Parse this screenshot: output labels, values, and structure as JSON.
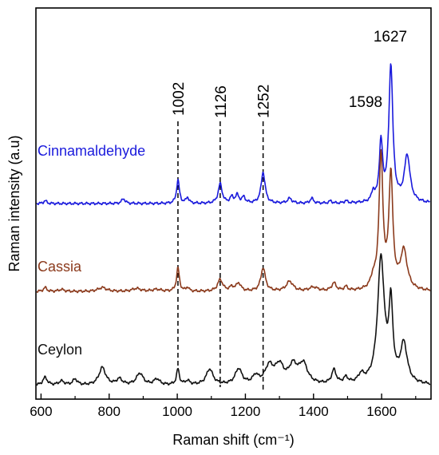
{
  "chart_data": {
    "type": "line",
    "xlabel": "Raman shift (cm⁻¹)",
    "ylabel": "Raman intensity (a.u)",
    "xlim": [
      585,
      1745
    ],
    "x_ticks": [
      600,
      800,
      1000,
      1200,
      1400,
      1600
    ],
    "grid": false,
    "legend": "none",
    "reference_lines": [
      {
        "x": 1002,
        "label": "1002"
      },
      {
        "x": 1126,
        "label": "1126"
      },
      {
        "x": 1252,
        "label": "1252"
      }
    ],
    "peak_labels": [
      {
        "x": 1598,
        "label": "1598"
      },
      {
        "x": 1627,
        "label": "1627"
      }
    ],
    "series": [
      {
        "name": "Cinnamaldehyde",
        "color": "#1a1adc",
        "baseline": 0.55,
        "peaks": [
          [
            612,
            0.015,
            5
          ],
          [
            842,
            0.025,
            6
          ],
          [
            1002,
            0.12,
            5
          ],
          [
            1030,
            0.03,
            5
          ],
          [
            1126,
            0.1,
            7
          ],
          [
            1160,
            0.03,
            6
          ],
          [
            1176,
            0.04,
            6
          ],
          [
            1195,
            0.03,
            6
          ],
          [
            1252,
            0.16,
            7
          ],
          [
            1330,
            0.025,
            8
          ],
          [
            1395,
            0.025,
            6
          ],
          [
            1450,
            0.012,
            5
          ],
          [
            1495,
            0.012,
            5
          ],
          [
            1575,
            0.05,
            5
          ],
          [
            1598,
            0.3,
            6
          ],
          [
            1627,
            0.7,
            7
          ],
          [
            1675,
            0.24,
            10
          ]
        ]
      },
      {
        "name": "Cassia",
        "color": "#8b3a1c",
        "baseline": 0.1,
        "peaks": [
          [
            612,
            0.02,
            6
          ],
          [
            660,
            0.01,
            10
          ],
          [
            780,
            0.02,
            15
          ],
          [
            880,
            0.015,
            15
          ],
          [
            940,
            0.01,
            15
          ],
          [
            1002,
            0.12,
            5
          ],
          [
            1030,
            0.02,
            5
          ],
          [
            1126,
            0.06,
            9
          ],
          [
            1160,
            0.02,
            8
          ],
          [
            1180,
            0.04,
            8
          ],
          [
            1252,
            0.12,
            8
          ],
          [
            1330,
            0.05,
            12
          ],
          [
            1400,
            0.02,
            15
          ],
          [
            1460,
            0.04,
            8
          ],
          [
            1495,
            0.02,
            6
          ],
          [
            1575,
            0.05,
            8
          ],
          [
            1598,
            0.68,
            7
          ],
          [
            1627,
            0.58,
            7
          ],
          [
            1665,
            0.2,
            12
          ]
        ]
      },
      {
        "name": "Ceylon",
        "color": "#111111",
        "baseline": -0.38,
        "peaks": [
          [
            612,
            0.04,
            8
          ],
          [
            660,
            0.02,
            10
          ],
          [
            700,
            0.03,
            8
          ],
          [
            780,
            0.09,
            12
          ],
          [
            830,
            0.03,
            10
          ],
          [
            890,
            0.06,
            12
          ],
          [
            940,
            0.03,
            10
          ],
          [
            1002,
            0.08,
            5
          ],
          [
            1030,
            0.02,
            8
          ],
          [
            1095,
            0.08,
            12
          ],
          [
            1180,
            0.08,
            12
          ],
          [
            1230,
            0.04,
            10
          ],
          [
            1270,
            0.09,
            15
          ],
          [
            1300,
            0.09,
            15
          ],
          [
            1340,
            0.09,
            15
          ],
          [
            1370,
            0.1,
            15
          ],
          [
            1460,
            0.07,
            8
          ],
          [
            1495,
            0.03,
            8
          ],
          [
            1540,
            0.04,
            10
          ],
          [
            1598,
            0.64,
            12
          ],
          [
            1627,
            0.38,
            7
          ],
          [
            1665,
            0.2,
            12
          ]
        ]
      }
    ]
  }
}
